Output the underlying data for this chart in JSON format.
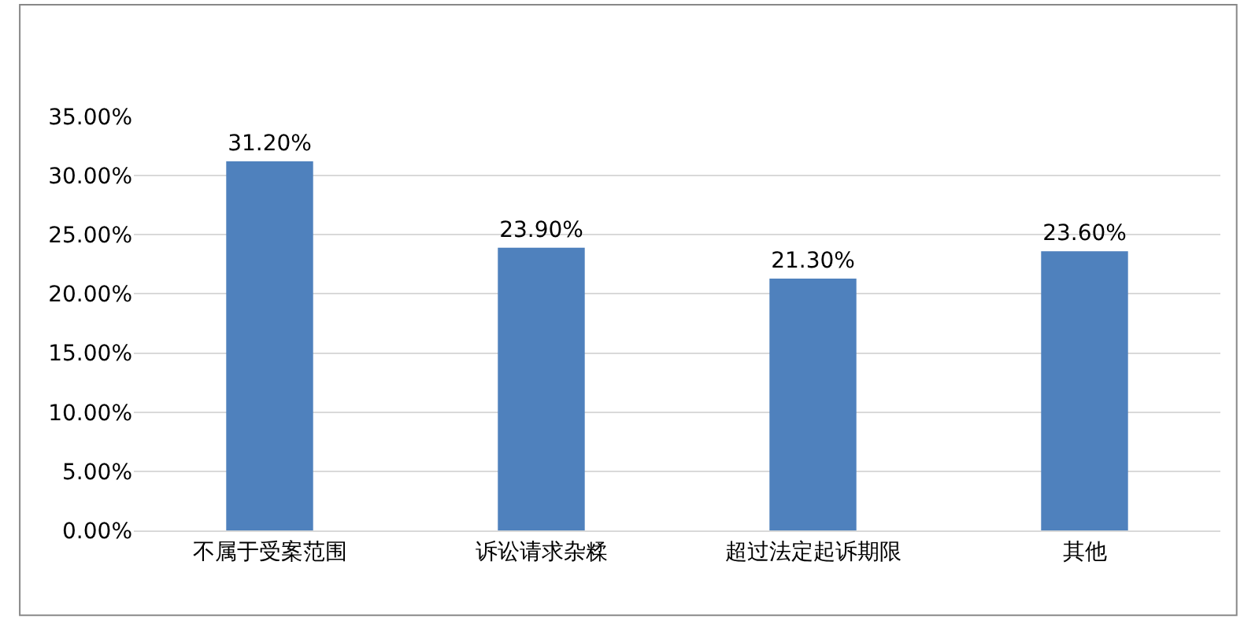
{
  "chart_data": {
    "type": "bar",
    "categories": [
      "不属于受案范围",
      "诉讼请求杂糅",
      "超过法定起诉期限",
      "其他"
    ],
    "values": [
      31.2,
      23.9,
      21.3,
      23.6
    ],
    "color": "#4f81bd",
    "value_labels": [
      "31.20%",
      "23.90%",
      "21.30%",
      "23.60%"
    ],
    "ylim": [
      0,
      35
    ],
    "yticks": [
      {
        "value": 0,
        "label": "0.00%"
      },
      {
        "value": 5,
        "label": "5.00%"
      },
      {
        "value": 10,
        "label": "10.00%"
      },
      {
        "value": 15,
        "label": "15.00%"
      },
      {
        "value": 20,
        "label": "20.00%"
      },
      {
        "value": 25,
        "label": "25.00%"
      },
      {
        "value": 30,
        "label": "30.00%"
      },
      {
        "value": 35,
        "label": "35.00%"
      }
    ],
    "grid": "y"
  }
}
